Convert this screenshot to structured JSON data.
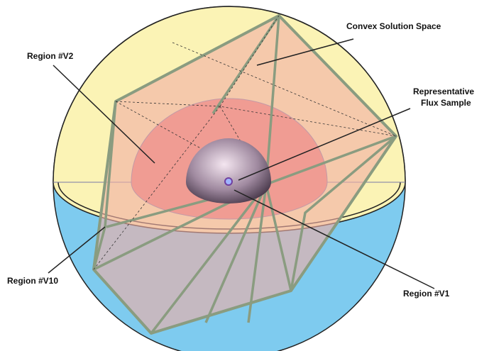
{
  "labels": [
    {
      "text": "Convex Solution Space"
    },
    {
      "text": "Region #V2"
    },
    {
      "lines": [
        "Representative",
        "Flux Sample"
      ]
    },
    {
      "text": "Region #V10"
    },
    {
      "text": "Region #V1"
    }
  ]
}
